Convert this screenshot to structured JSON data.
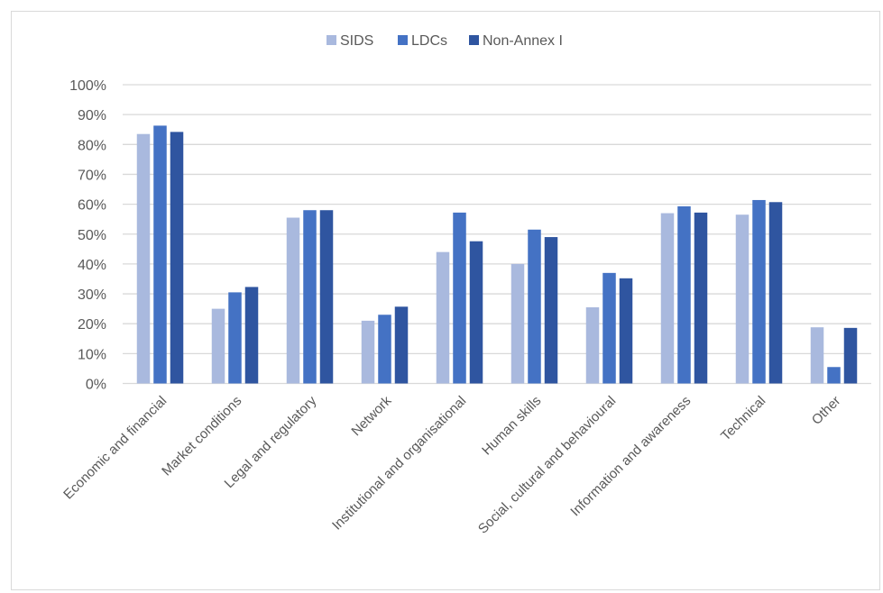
{
  "chart_data": {
    "type": "bar",
    "categories": [
      "Economic and financial",
      "Market conditions",
      "Legal and regulatory",
      "Network",
      "Institutional and organisational",
      "Human skills",
      "Social, cultural and behavioural",
      "Information and awareness",
      "Technical",
      "Other"
    ],
    "series": [
      {
        "name": "SIDS",
        "color": "#a9b9de",
        "values": [
          83.5,
          25,
          55.5,
          21,
          44,
          40,
          25.5,
          57,
          56.5,
          18.8
        ]
      },
      {
        "name": "LDCs",
        "color": "#4472c4",
        "values": [
          86.3,
          30.5,
          58,
          23,
          57.2,
          51.5,
          37,
          59.3,
          61.4,
          5.5
        ]
      },
      {
        "name": "Non-Annex I",
        "color": "#2f55a0",
        "values": [
          84.2,
          32.3,
          58,
          25.7,
          47.6,
          49,
          35.2,
          57.2,
          60.7,
          18.6
        ]
      }
    ],
    "ylim": [
      0,
      100
    ],
    "yticks": [
      "0%",
      "10%",
      "20%",
      "30%",
      "40%",
      "50%",
      "60%",
      "70%",
      "80%",
      "90%",
      "100%"
    ],
    "grid": true,
    "legend_position": "top-center",
    "gridline_color": "#d9d9d9"
  }
}
